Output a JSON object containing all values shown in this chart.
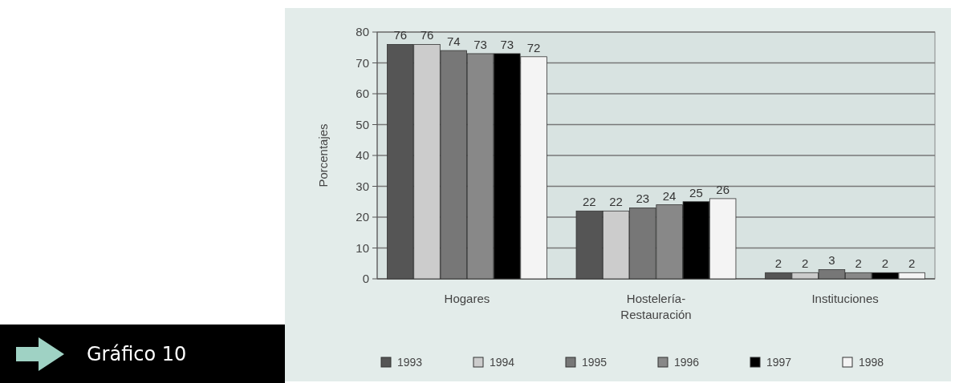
{
  "chart_data": {
    "type": "bar",
    "title": "Gráfico 10",
    "ylabel": "Porcentajes",
    "categories": [
      "Hogares",
      "Hostelería-Restauración",
      "Instituciones"
    ],
    "series": [
      {
        "name": "1993",
        "color": "#555555",
        "values": [
          76,
          22,
          2
        ]
      },
      {
        "name": "1994",
        "color": "#cccccc",
        "values": [
          76,
          22,
          2
        ]
      },
      {
        "name": "1995",
        "color": "#777777",
        "values": [
          74,
          23,
          3
        ]
      },
      {
        "name": "1996",
        "color": "#888888",
        "values": [
          73,
          24,
          2
        ]
      },
      {
        "name": "1997",
        "color": "#000000",
        "values": [
          73,
          25,
          2
        ]
      },
      {
        "name": "1998",
        "color": "#f4f4f4",
        "values": [
          72,
          26,
          2
        ]
      }
    ],
    "ylim": [
      0,
      80
    ],
    "yticks": [
      0,
      10,
      20,
      30,
      40,
      50,
      60,
      70,
      80
    ],
    "grid": "y",
    "legend": "bottom",
    "data_labels": true
  }
}
